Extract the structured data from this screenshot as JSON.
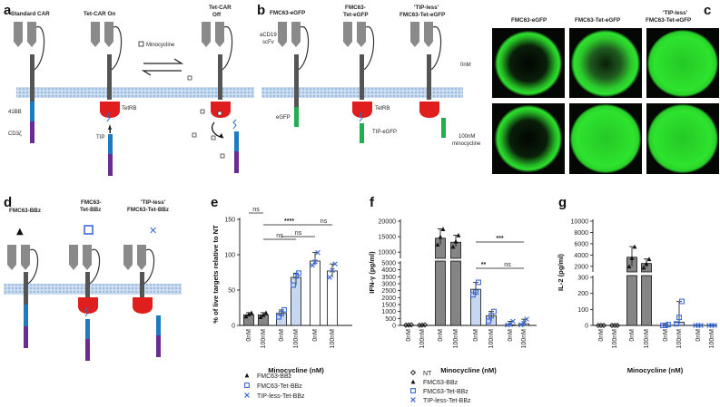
{
  "figure": {
    "panels": {
      "a": "a",
      "b": "b",
      "c": "c",
      "d": "d",
      "e": "e",
      "f": "f",
      "g": "g"
    },
    "panel_a": {
      "standard_car": "Standard CAR",
      "tet_car_on": "Tet-CAR On",
      "tet_car_off_line1": "Tet-CAR",
      "tet_car_off_line2": "Off",
      "minocycline": "Minocycline",
      "label_41bb": "41BB",
      "label_cd3z": "CD3ζ",
      "label_tetrb": "TetRB",
      "label_tip": "TIP"
    },
    "panel_b": {
      "col1": "FMC63-eGFP",
      "col2_line1": "FMC63-",
      "col2_line2": "Tet-eGFP",
      "col3_line1": "'TIP-less'",
      "col3_line2": "FMC63-Tet-eGFP",
      "scfv_line1": "aCD19",
      "scfv_line2": "scFv",
      "egfp": "eGFP",
      "tetrb": "TetRB",
      "tip_egfp": "TIP-eGFP"
    },
    "panel_c": {
      "col1": "FMC63-eGFP",
      "col2": "FMC63-Tet-eGFP",
      "col3_line1": "'TIP-less'",
      "col3_line2": "FMC63-Tet-eGFP",
      "row1": "0nM",
      "row2_line1": "100nM",
      "row2_line2": "minocycline"
    },
    "panel_d": {
      "col1": "FMC63-BBz",
      "col2_line1": "FMC63-",
      "col2_line2": "Tet-BBz",
      "col3_line1": "'TIP-less'",
      "col3_line2": "FMC63-Tet-BBz",
      "sym1": "▲",
      "sym3": "✕"
    }
  },
  "chart_data": [
    {
      "panel": "e",
      "type": "bar",
      "ylabel": "% of live targets relative to NT",
      "xlabel": "Minocycline (nM)",
      "categories": [
        "0nM",
        "100nM",
        "0nM",
        "100nM",
        "0nM",
        "100nM"
      ],
      "yticks": [
        0,
        50,
        100,
        150
      ],
      "ylim": [
        0,
        150
      ],
      "groups": [
        "FMC63-BBz",
        "FMC63-Tet-BBz",
        "TIP-less-Tet-BBz"
      ],
      "values": [
        15,
        15,
        17,
        68,
        91,
        77
      ],
      "points": [
        [
          13,
          16,
          18
        ],
        [
          12,
          15,
          18
        ],
        [
          12,
          17,
          22
        ],
        [
          57,
          70,
          74
        ],
        [
          85,
          90,
          103
        ],
        [
          68,
          78,
          87
        ]
      ],
      "significance": [
        {
          "label": "ns"
        },
        {
          "label": "ns"
        },
        {
          "label": "****"
        },
        {
          "label": "ns"
        },
        {
          "label": "ns"
        }
      ],
      "legend": [
        "FMC63-BBz",
        "FMC63-Tet-BBz",
        "TIP-less-Tet-BBz"
      ]
    },
    {
      "panel": "f",
      "type": "bar",
      "ylabel": "IFN-γ (pg/ml)",
      "xlabel": "Minocycline (nM)",
      "categories": [
        "0nM",
        "100nM",
        "0nM",
        "100nM",
        "0nM",
        "100nM",
        "0nM",
        "100nM"
      ],
      "groups": [
        "NT",
        "FMC63-BBz",
        "FMC63-Tet-BBz",
        "TIP-less-Tet-BBz"
      ],
      "yticks_lower": [
        "0",
        "500",
        "1000",
        "1500",
        "2000",
        "2500",
        "3000",
        "3500",
        "4000",
        "5000"
      ],
      "yticks_upper": [
        "10000",
        "15000",
        "20000"
      ],
      "values": [
        0,
        0,
        14500,
        13200,
        2600,
        700,
        40,
        120
      ],
      "points": [
        [
          20,
          30,
          40
        ],
        [
          10,
          20,
          40
        ],
        [
          12500,
          15000,
          17500
        ],
        [
          11800,
          13500,
          15500
        ],
        [
          2200,
          2400,
          3100
        ],
        [
          300,
          700,
          1000
        ],
        [
          30,
          60,
          300
        ],
        [
          40,
          160,
          450
        ]
      ],
      "significance": [
        {
          "label": "***"
        },
        {
          "label": "**"
        },
        {
          "label": "ns"
        }
      ],
      "legend": [
        "NT",
        "FMC63-BBz",
        "FMC63-Tet-BBz",
        "TIP-less-Tet-BBz"
      ]
    },
    {
      "panel": "g",
      "type": "bar",
      "ylabel": "IL-2 (pg/ml)",
      "xlabel": "Minocycline (nM)",
      "categories": [
        "0nM",
        "100nM",
        "0nM",
        "100nM",
        "0nM",
        "100nM",
        "0nM",
        "100nM"
      ],
      "groups": [
        "NT",
        "FMC63-BBz",
        "FMC63-Tet-BBz",
        "TIP-less-Tet-BBz"
      ],
      "yticks_lower": [
        "0",
        "100",
        "200",
        "300"
      ],
      "yticks_upper": [
        "2000",
        "4000",
        "6000",
        "8000",
        "10000"
      ],
      "values": [
        0,
        0,
        3600,
        2500,
        0,
        20,
        0,
        0
      ],
      "points": [
        [
          0,
          0,
          0
        ],
        [
          0,
          0,
          0
        ],
        [
          2000,
          3500,
          5500
        ],
        [
          1800,
          2500,
          3300
        ],
        [
          0,
          0,
          5
        ],
        [
          10,
          50,
          150
        ],
        [
          0,
          0,
          0
        ],
        [
          0,
          0,
          0
        ]
      ]
    }
  ],
  "colors": {
    "membrane": "#cfdff0",
    "receptor": "#8a8a8a",
    "receptor_dark": "#595959",
    "blue_domain": "#1e7bc2",
    "purple_domain": "#6a2c91",
    "tetr": "#e01e1e",
    "egfp": "#1fae52",
    "tip": "#26a7c9",
    "bar_dark": "#858585",
    "bar_light": "#c7d6f1",
    "marker_blue": "#3d6bd6",
    "micro_dark": "#050805",
    "micro_green": "#2ee02e"
  },
  "icons": {
    "triangle": "triangle-marker-icon",
    "square": "open-square-marker-icon",
    "cross": "cross-marker-icon",
    "diamond": "open-diamond-marker-icon"
  }
}
